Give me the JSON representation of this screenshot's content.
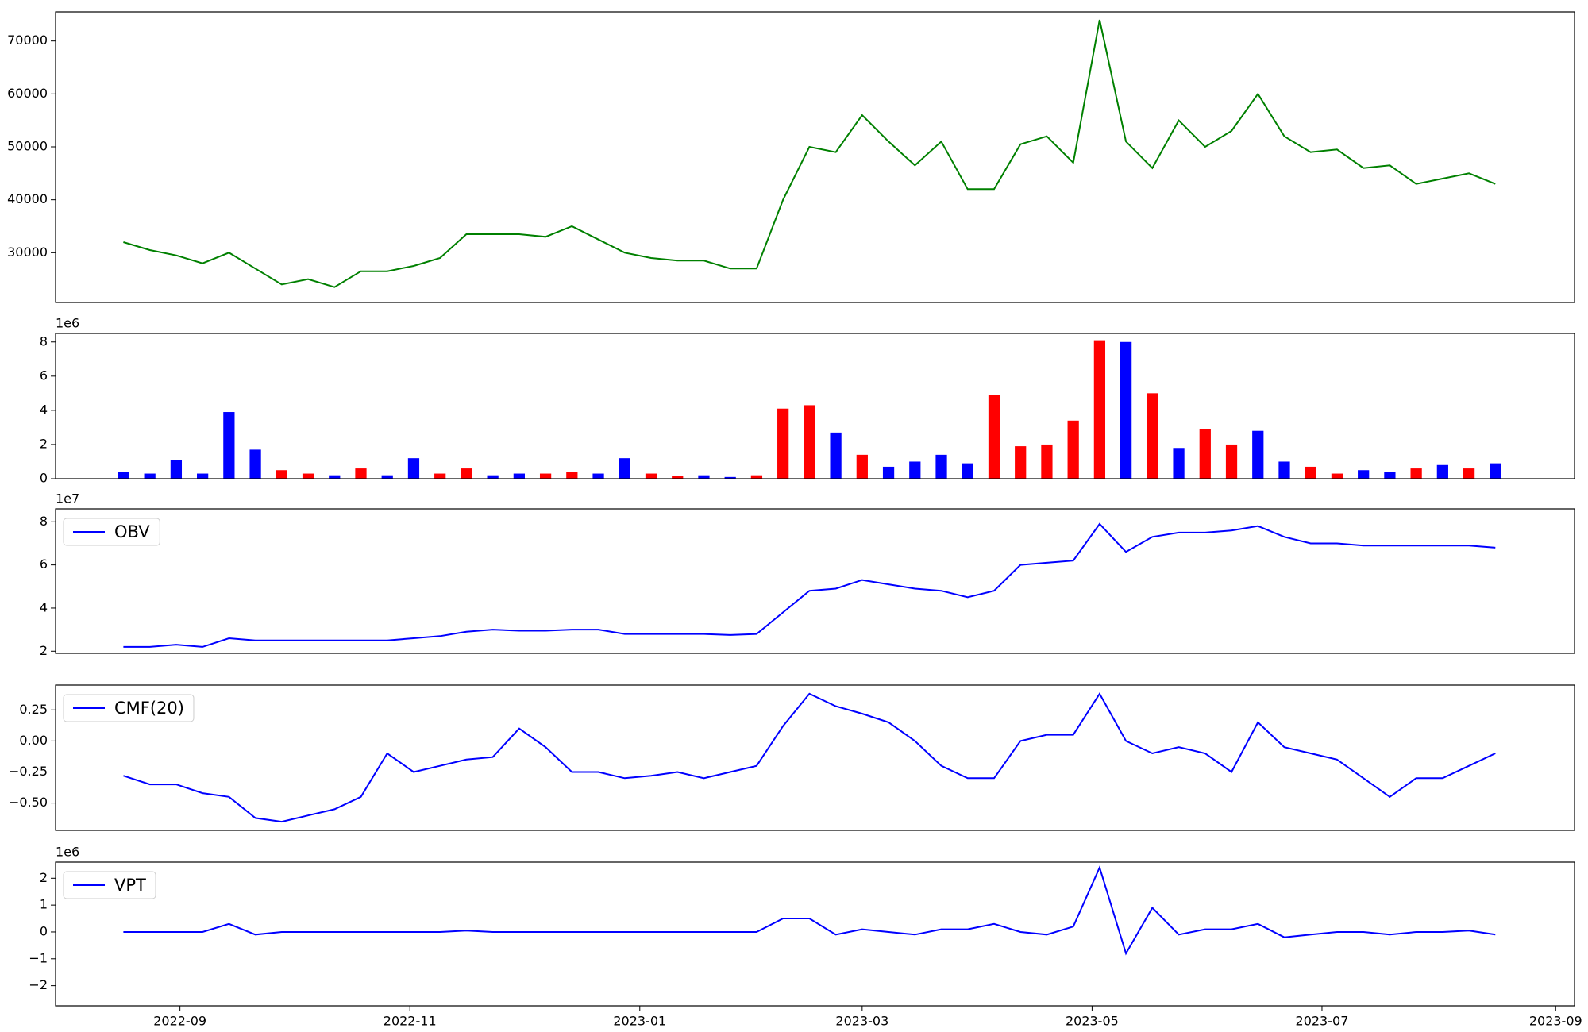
{
  "chart_data": [
    {
      "type": "line",
      "color": "green",
      "x": [
        "2022-08-17",
        "2022-08-24",
        "2022-08-31",
        "2022-09-07",
        "2022-09-14",
        "2022-09-21",
        "2022-09-28",
        "2022-10-05",
        "2022-10-12",
        "2022-10-19",
        "2022-10-26",
        "2022-11-02",
        "2022-11-09",
        "2022-11-16",
        "2022-11-23",
        "2022-11-30",
        "2022-12-07",
        "2022-12-14",
        "2022-12-21",
        "2022-12-28",
        "2023-01-04",
        "2023-01-11",
        "2023-01-18",
        "2023-01-25",
        "2023-02-01",
        "2023-02-08",
        "2023-02-15",
        "2023-02-22",
        "2023-03-01",
        "2023-03-08",
        "2023-03-15",
        "2023-03-22",
        "2023-03-29",
        "2023-04-05",
        "2023-04-12",
        "2023-04-19",
        "2023-04-26",
        "2023-05-03",
        "2023-05-10",
        "2023-05-17",
        "2023-05-24",
        "2023-05-31",
        "2023-06-07",
        "2023-06-14",
        "2023-06-21",
        "2023-06-28",
        "2023-07-05",
        "2023-07-12",
        "2023-07-19",
        "2023-07-26",
        "2023-08-02",
        "2023-08-09",
        "2023-08-16"
      ],
      "values": [
        32000,
        30500,
        29500,
        28000,
        30000,
        27000,
        24000,
        25000,
        23500,
        26500,
        26500,
        27500,
        29000,
        33500,
        33500,
        33500,
        33000,
        35000,
        32500,
        30000,
        29000,
        28500,
        28500,
        27000,
        27000,
        40000,
        50000,
        49000,
        56000,
        51000,
        46500,
        51000,
        42000,
        42000,
        50500,
        52000,
        47000,
        74000,
        51000,
        46000,
        55000,
        50000,
        53000,
        60000,
        52000,
        49000,
        49500,
        46000,
        46500,
        43000,
        44000,
        45000,
        43000
      ],
      "xlim": [
        "2022-07-30",
        "2023-09-06"
      ],
      "ylim": [
        20600,
        75500
      ],
      "yticks": [
        30000,
        40000,
        50000,
        60000,
        70000
      ]
    },
    {
      "type": "bar",
      "offset_text": "1e6",
      "x": [
        "2022-08-17",
        "2022-08-24",
        "2022-08-31",
        "2022-09-07",
        "2022-09-14",
        "2022-09-21",
        "2022-09-28",
        "2022-10-05",
        "2022-10-12",
        "2022-10-19",
        "2022-10-26",
        "2022-11-02",
        "2022-11-09",
        "2022-11-16",
        "2022-11-23",
        "2022-11-30",
        "2022-12-07",
        "2022-12-14",
        "2022-12-21",
        "2022-12-28",
        "2023-01-04",
        "2023-01-11",
        "2023-01-18",
        "2023-01-25",
        "2023-02-01",
        "2023-02-08",
        "2023-02-15",
        "2023-02-22",
        "2023-03-01",
        "2023-03-08",
        "2023-03-15",
        "2023-03-22",
        "2023-03-29",
        "2023-04-05",
        "2023-04-12",
        "2023-04-19",
        "2023-04-26",
        "2023-05-03",
        "2023-05-10",
        "2023-05-17",
        "2023-05-24",
        "2023-05-31",
        "2023-06-07",
        "2023-06-14",
        "2023-06-21",
        "2023-06-28",
        "2023-07-05",
        "2023-07-12",
        "2023-07-19",
        "2023-07-26",
        "2023-08-02",
        "2023-08-09",
        "2023-08-16"
      ],
      "values": [
        0.4,
        0.3,
        1.1,
        0.3,
        3.9,
        1.7,
        0.5,
        0.3,
        0.2,
        0.6,
        0.2,
        1.2,
        0.3,
        0.6,
        0.2,
        0.3,
        0.3,
        0.4,
        0.3,
        1.2,
        0.3,
        0.15,
        0.2,
        0.1,
        0.2,
        4.1,
        4.3,
        2.7,
        1.4,
        0.7,
        1.0,
        1.4,
        0.9,
        4.9,
        1.9,
        2.0,
        3.4,
        8.1,
        8.0,
        5.0,
        1.8,
        2.9,
        2.0,
        2.8,
        1.0,
        0.7,
        0.3,
        0.5,
        0.4,
        0.6,
        0.8,
        0.6,
        0.9
      ],
      "colors": [
        "blue",
        "blue",
        "blue",
        "blue",
        "blue",
        "blue",
        "red",
        "red",
        "blue",
        "red",
        "blue",
        "blue",
        "red",
        "red",
        "blue",
        "blue",
        "red",
        "red",
        "blue",
        "blue",
        "red",
        "red",
        "blue",
        "blue",
        "red",
        "red",
        "red",
        "blue",
        "red",
        "blue",
        "blue",
        "blue",
        "blue",
        "red",
        "red",
        "red",
        "red",
        "red",
        "blue",
        "red",
        "blue",
        "red",
        "red",
        "blue",
        "blue",
        "red",
        "red",
        "blue",
        "blue",
        "red",
        "blue",
        "red",
        "blue"
      ],
      "xlim": [
        "2022-07-30",
        "2023-09-06"
      ],
      "ylim": [
        0,
        8.5
      ],
      "yticks": [
        0,
        2,
        4,
        6,
        8
      ]
    },
    {
      "type": "line",
      "offset_text": "1e7",
      "legend": "upper left",
      "x": [
        "2022-08-17",
        "2022-08-24",
        "2022-08-31",
        "2022-09-07",
        "2022-09-14",
        "2022-09-21",
        "2022-09-28",
        "2022-10-05",
        "2022-10-12",
        "2022-10-19",
        "2022-10-26",
        "2022-11-02",
        "2022-11-09",
        "2022-11-16",
        "2022-11-23",
        "2022-11-30",
        "2022-12-07",
        "2022-12-14",
        "2022-12-21",
        "2022-12-28",
        "2023-01-04",
        "2023-01-11",
        "2023-01-18",
        "2023-01-25",
        "2023-02-01",
        "2023-02-08",
        "2023-02-15",
        "2023-02-22",
        "2023-03-01",
        "2023-03-08",
        "2023-03-15",
        "2023-03-22",
        "2023-03-29",
        "2023-04-05",
        "2023-04-12",
        "2023-04-19",
        "2023-04-26",
        "2023-05-03",
        "2023-05-10",
        "2023-05-17",
        "2023-05-24",
        "2023-05-31",
        "2023-06-07",
        "2023-06-14",
        "2023-06-21",
        "2023-06-28",
        "2023-07-05",
        "2023-07-12",
        "2023-07-19",
        "2023-07-26",
        "2023-08-02",
        "2023-08-09",
        "2023-08-16"
      ],
      "series": [
        {
          "name": "OBV",
          "color": "blue",
          "values": [
            2.2,
            2.2,
            2.3,
            2.2,
            2.6,
            2.5,
            2.5,
            2.5,
            2.5,
            2.5,
            2.5,
            2.6,
            2.7,
            2.9,
            3.0,
            2.95,
            2.95,
            3.0,
            3.0,
            2.8,
            2.8,
            2.8,
            2.8,
            2.75,
            2.8,
            3.8,
            4.8,
            4.9,
            5.3,
            5.1,
            4.9,
            4.8,
            4.5,
            4.8,
            6.0,
            6.1,
            6.2,
            7.9,
            6.6,
            7.3,
            7.5,
            7.5,
            7.6,
            7.8,
            7.3,
            7.0,
            7.0,
            6.9,
            6.9,
            6.9,
            6.9,
            6.9,
            6.8
          ]
        }
      ],
      "xlim": [
        "2022-07-30",
        "2023-09-06"
      ],
      "ylim": [
        1.9,
        8.6
      ],
      "yticks": [
        2,
        4,
        6,
        8
      ]
    },
    {
      "type": "line",
      "legend": "upper left",
      "x": [
        "2022-08-17",
        "2022-08-24",
        "2022-08-31",
        "2022-09-07",
        "2022-09-14",
        "2022-09-21",
        "2022-09-28",
        "2022-10-05",
        "2022-10-12",
        "2022-10-19",
        "2022-10-26",
        "2022-11-02",
        "2022-11-09",
        "2022-11-16",
        "2022-11-23",
        "2022-11-30",
        "2022-12-07",
        "2022-12-14",
        "2022-12-21",
        "2022-12-28",
        "2023-01-04",
        "2023-01-11",
        "2023-01-18",
        "2023-01-25",
        "2023-02-01",
        "2023-02-08",
        "2023-02-15",
        "2023-02-22",
        "2023-03-01",
        "2023-03-08",
        "2023-03-15",
        "2023-03-22",
        "2023-03-29",
        "2023-04-05",
        "2023-04-12",
        "2023-04-19",
        "2023-04-26",
        "2023-05-03",
        "2023-05-10",
        "2023-05-17",
        "2023-05-24",
        "2023-05-31",
        "2023-06-07",
        "2023-06-14",
        "2023-06-21",
        "2023-06-28",
        "2023-07-05",
        "2023-07-12",
        "2023-07-19",
        "2023-07-26",
        "2023-08-02",
        "2023-08-09",
        "2023-08-16"
      ],
      "series": [
        {
          "name": "CMF(20)",
          "color": "blue",
          "values": [
            -0.28,
            -0.35,
            -0.35,
            -0.42,
            -0.45,
            -0.62,
            -0.65,
            -0.6,
            -0.55,
            -0.45,
            -0.1,
            -0.25,
            -0.2,
            -0.15,
            -0.13,
            0.1,
            -0.05,
            -0.25,
            -0.25,
            -0.3,
            -0.28,
            -0.25,
            -0.3,
            -0.25,
            -0.2,
            0.12,
            0.38,
            0.28,
            0.22,
            0.15,
            0.0,
            -0.2,
            -0.3,
            -0.3,
            0.0,
            0.05,
            0.05,
            0.38,
            0.0,
            -0.1,
            -0.05,
            -0.1,
            -0.25,
            0.15,
            -0.05,
            -0.1,
            -0.15,
            -0.3,
            -0.45,
            -0.3,
            -0.3,
            -0.2,
            -0.1
          ]
        }
      ],
      "xlim": [
        "2022-07-30",
        "2023-09-06"
      ],
      "ylim": [
        -0.72,
        0.45
      ],
      "yticks": [
        {
          "value": -0.5,
          "label": "−0.50"
        },
        {
          "value": -0.25,
          "label": "−0.25"
        },
        {
          "value": 0,
          "label": "0.00"
        },
        {
          "value": 0.25,
          "label": "0.25"
        }
      ]
    },
    {
      "type": "line",
      "offset_text": "1e6",
      "legend": "upper left",
      "x": [
        "2022-08-17",
        "2022-08-24",
        "2022-08-31",
        "2022-09-07",
        "2022-09-14",
        "2022-09-21",
        "2022-09-28",
        "2022-10-05",
        "2022-10-12",
        "2022-10-19",
        "2022-10-26",
        "2022-11-02",
        "2022-11-09",
        "2022-11-16",
        "2022-11-23",
        "2022-11-30",
        "2022-12-07",
        "2022-12-14",
        "2022-12-21",
        "2022-12-28",
        "2023-01-04",
        "2023-01-11",
        "2023-01-18",
        "2023-01-25",
        "2023-02-01",
        "2023-02-08",
        "2023-02-15",
        "2023-02-22",
        "2023-03-01",
        "2023-03-08",
        "2023-03-15",
        "2023-03-22",
        "2023-03-29",
        "2023-04-05",
        "2023-04-12",
        "2023-04-19",
        "2023-04-26",
        "2023-05-03",
        "2023-05-10",
        "2023-05-17",
        "2023-05-24",
        "2023-05-31",
        "2023-06-07",
        "2023-06-14",
        "2023-06-21",
        "2023-06-28",
        "2023-07-05",
        "2023-07-12",
        "2023-07-19",
        "2023-07-26",
        "2023-08-02",
        "2023-08-09",
        "2023-08-16"
      ],
      "series": [
        {
          "name": "VPT",
          "color": "blue",
          "values": [
            0,
            0,
            0,
            0,
            0.3,
            -0.1,
            0,
            0,
            0,
            0,
            0,
            0,
            0,
            0.05,
            0,
            0,
            0,
            0,
            0,
            0,
            0,
            0,
            0,
            0,
            0,
            0.5,
            0.5,
            -0.1,
            0.1,
            0,
            -0.1,
            0.1,
            0.1,
            0.3,
            0.0,
            -0.1,
            0.2,
            2.4,
            -0.8,
            0.9,
            -0.1,
            0.1,
            0.1,
            0.3,
            -0.2,
            -0.1,
            0,
            0,
            -0.1,
            0,
            0,
            0.05,
            -0.1
          ]
        }
      ],
      "xlim": [
        "2022-07-30",
        "2023-09-06"
      ],
      "ylim": [
        -2.75,
        2.6
      ],
      "yticks": [
        {
          "value": -2,
          "label": "−2"
        },
        {
          "value": -1,
          "label": "−1"
        },
        0,
        1,
        2
      ],
      "xticks": [
        "2022-09",
        "2022-11",
        "2023-01",
        "2023-03",
        "2023-05",
        "2023-07",
        "2023-09"
      ]
    }
  ]
}
